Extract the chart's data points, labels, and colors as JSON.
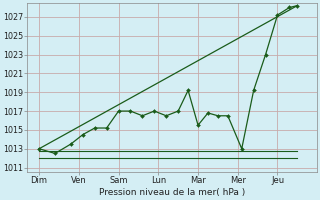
{
  "background_color": "#d4eef4",
  "grid_color": "#c8aaaa",
  "line_color": "#1a5c1a",
  "x_labels": [
    "Dim",
    "Ven",
    "Sam",
    "Lun",
    "Mar",
    "Mer",
    "Jeu"
  ],
  "ylabel": "Pression niveau de la mer( hPa )",
  "ylim": [
    1010.5,
    1028.5
  ],
  "yticks": [
    1011,
    1013,
    1015,
    1017,
    1019,
    1021,
    1023,
    1025,
    1027
  ],
  "xlim": [
    -0.3,
    7.0
  ],
  "line1_x": [
    0,
    6.5
  ],
  "line1_y": [
    1013.0,
    1028.2
  ],
  "line2_x": [
    0.0,
    0.4,
    0.8,
    1.1,
    1.4,
    1.7,
    2.0,
    2.3,
    2.6,
    2.9,
    3.2,
    3.5,
    3.75,
    4.0,
    4.25,
    4.5,
    4.75,
    5.1,
    5.4,
    5.7,
    6.0,
    6.3,
    6.5
  ],
  "line2_y": [
    1013.0,
    1012.5,
    1013.5,
    1014.5,
    1015.2,
    1015.2,
    1017.0,
    1017.0,
    1016.5,
    1017.0,
    1016.5,
    1017.0,
    1019.2,
    1015.5,
    1016.8,
    1016.5,
    1016.5,
    1013.0,
    1019.2,
    1023.0,
    1027.2,
    1028.0,
    1028.2
  ],
  "line3_x": [
    0.0,
    6.5
  ],
  "line3_y": [
    1012.8,
    1012.8
  ],
  "line4_x": [
    0.0,
    6.5
  ],
  "line4_y": [
    1012.0,
    1012.0
  ]
}
